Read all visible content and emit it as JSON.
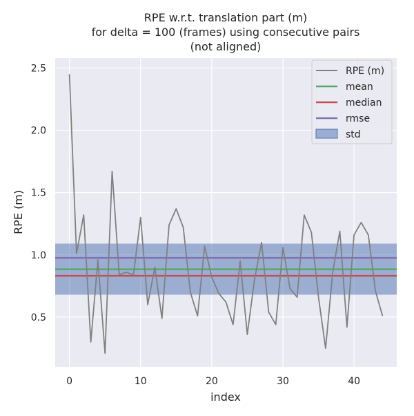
{
  "chart_data": {
    "type": "line",
    "title_lines": [
      "RPE w.r.t. translation part (m)",
      "for delta = 100 (frames) using consecutive pairs",
      "(not aligned)"
    ],
    "xlabel": "index",
    "ylabel": "RPE (m)",
    "xlim": [
      -2,
      46
    ],
    "ylim": [
      0.1,
      2.58
    ],
    "xticks": [
      0,
      10,
      20,
      30,
      40
    ],
    "yticks": [
      0.5,
      1.0,
      1.5,
      2.0,
      2.5
    ],
    "xtick_labels": [
      "0",
      "10",
      "20",
      "30",
      "40"
    ],
    "ytick_labels": [
      "0.5",
      "1.0",
      "1.5",
      "2.0",
      "2.5"
    ],
    "grid": true,
    "legend_position": "top-right",
    "colors": {
      "series": "#808080",
      "mean": "#55a868",
      "median": "#c44e52",
      "rmse": "#8172b2",
      "std": "#4c72b0",
      "background": "#eaeaf2"
    },
    "series": [
      {
        "name": "RPE (m)",
        "x": [
          0,
          1,
          2,
          3,
          4,
          5,
          6,
          7,
          8,
          9,
          10,
          11,
          12,
          13,
          14,
          15,
          16,
          17,
          18,
          19,
          20,
          21,
          22,
          23,
          24,
          25,
          26,
          27,
          28,
          29,
          30,
          31,
          32,
          33,
          34,
          35,
          36,
          37,
          38,
          39,
          40,
          41,
          42,
          43,
          44
        ],
        "y": [
          2.45,
          1.01,
          1.32,
          0.3,
          0.96,
          0.21,
          1.67,
          0.84,
          0.86,
          0.84,
          1.3,
          0.6,
          0.9,
          0.49,
          1.24,
          1.37,
          1.22,
          0.7,
          0.51,
          1.07,
          0.82,
          0.69,
          0.62,
          0.44,
          0.95,
          0.36,
          0.8,
          1.1,
          0.54,
          0.44,
          1.06,
          0.73,
          0.66,
          1.32,
          1.18,
          0.66,
          0.25,
          0.86,
          1.19,
          0.42,
          1.16,
          1.26,
          1.16,
          0.71,
          0.51
        ]
      }
    ],
    "stats": {
      "mean": 0.884,
      "median": 0.832,
      "rmse": 0.975,
      "std_low": 0.68,
      "std_high": 1.09
    },
    "legend": [
      "RPE (m)",
      "mean",
      "median",
      "rmse",
      "std"
    ]
  }
}
